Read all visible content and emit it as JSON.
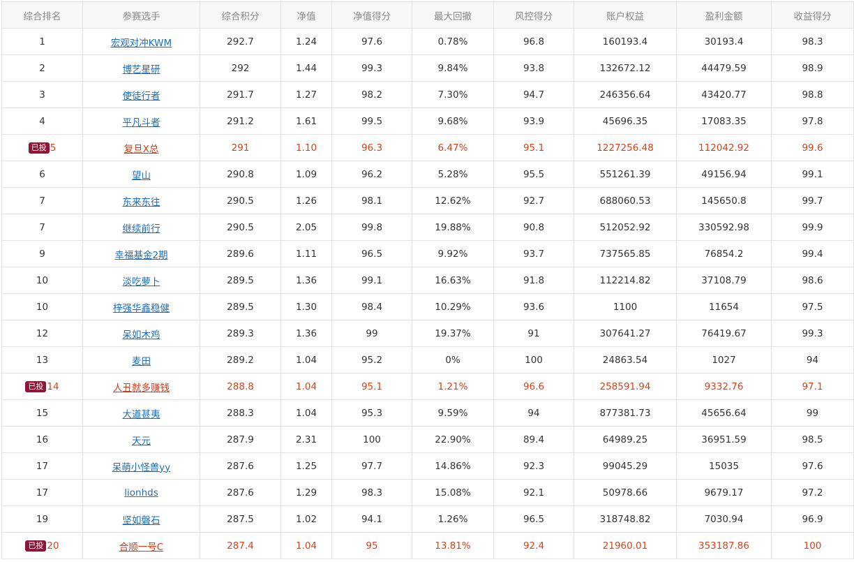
{
  "table": {
    "headers": [
      "综合排名",
      "参赛选手",
      "综合积分",
      "净值",
      "净值得分",
      "最大回撤",
      "风控得分",
      "账户权益",
      "盈利金额",
      "收益得分"
    ],
    "rows": [
      {
        "rank": "1",
        "badge": "",
        "name": "宏观对冲KWM",
        "score": "292.7",
        "nav": "1.24",
        "nav_score": "97.6",
        "max_drawdown": "0.78%",
        "risk_score": "96.8",
        "equity": "160193.4",
        "profit": "30193.4",
        "return_score": "98.3"
      },
      {
        "rank": "2",
        "badge": "",
        "name": "博艺星研",
        "score": "292",
        "nav": "1.44",
        "nav_score": "99.3",
        "max_drawdown": "9.84%",
        "risk_score": "93.8",
        "equity": "132672.12",
        "profit": "44479.59",
        "return_score": "98.9"
      },
      {
        "rank": "3",
        "badge": "",
        "name": "使徒行者",
        "score": "291.7",
        "nav": "1.27",
        "nav_score": "98.2",
        "max_drawdown": "7.30%",
        "risk_score": "94.7",
        "equity": "246356.64",
        "profit": "43420.77",
        "return_score": "98.8"
      },
      {
        "rank": "4",
        "badge": "",
        "name": "平凡斗者",
        "score": "291.2",
        "nav": "1.61",
        "nav_score": "99.5",
        "max_drawdown": "9.68%",
        "risk_score": "93.9",
        "equity": "45696.35",
        "profit": "17083.35",
        "return_score": "97.8"
      },
      {
        "rank": "5",
        "badge": "已投",
        "name": "复旦X总",
        "score": "291",
        "nav": "1.10",
        "nav_score": "96.3",
        "max_drawdown": "6.47%",
        "risk_score": "95.1",
        "equity": "1227256.48",
        "profit": "112042.92",
        "return_score": "99.6"
      },
      {
        "rank": "6",
        "badge": "",
        "name": "望山",
        "score": "290.8",
        "nav": "1.09",
        "nav_score": "96.2",
        "max_drawdown": "5.28%",
        "risk_score": "95.5",
        "equity": "551261.39",
        "profit": "49156.94",
        "return_score": "99.1"
      },
      {
        "rank": "7",
        "badge": "",
        "name": "东来东往",
        "score": "290.5",
        "nav": "1.26",
        "nav_score": "98.1",
        "max_drawdown": "12.62%",
        "risk_score": "92.7",
        "equity": "688060.53",
        "profit": "145650.8",
        "return_score": "99.7"
      },
      {
        "rank": "7",
        "badge": "",
        "name": "继续前行",
        "score": "290.5",
        "nav": "2.05",
        "nav_score": "99.8",
        "max_drawdown": "19.88%",
        "risk_score": "90.8",
        "equity": "512052.92",
        "profit": "330592.98",
        "return_score": "99.9"
      },
      {
        "rank": "9",
        "badge": "",
        "name": "幸福基金2期",
        "score": "289.6",
        "nav": "1.11",
        "nav_score": "96.5",
        "max_drawdown": "9.92%",
        "risk_score": "93.7",
        "equity": "737565.85",
        "profit": "76854.2",
        "return_score": "99.4"
      },
      {
        "rank": "10",
        "badge": "",
        "name": "淡吃萝卜",
        "score": "289.5",
        "nav": "1.36",
        "nav_score": "99.1",
        "max_drawdown": "16.63%",
        "risk_score": "91.8",
        "equity": "112214.82",
        "profit": "37108.79",
        "return_score": "98.6"
      },
      {
        "rank": "10",
        "badge": "",
        "name": "梓强华鑫稳健",
        "score": "289.5",
        "nav": "1.30",
        "nav_score": "98.4",
        "max_drawdown": "10.29%",
        "risk_score": "93.6",
        "equity": "1100",
        "profit": "11654",
        "return_score": "97.5"
      },
      {
        "rank": "12",
        "badge": "",
        "name": "呆如木鸡",
        "score": "289.3",
        "nav": "1.36",
        "nav_score": "99",
        "max_drawdown": "19.37%",
        "risk_score": "91",
        "equity": "307641.27",
        "profit": "76419.67",
        "return_score": "99.3"
      },
      {
        "rank": "13",
        "badge": "",
        "name": "麦田",
        "score": "289.2",
        "nav": "1.04",
        "nav_score": "95.2",
        "max_drawdown": "0%",
        "risk_score": "100",
        "equity": "24863.54",
        "profit": "1027",
        "return_score": "94"
      },
      {
        "rank": "14",
        "badge": "已投",
        "name": "人丑就多赚钱",
        "score": "288.8",
        "nav": "1.04",
        "nav_score": "95.1",
        "max_drawdown": "1.21%",
        "risk_score": "96.6",
        "equity": "258591.94",
        "profit": "9332.76",
        "return_score": "97.1"
      },
      {
        "rank": "15",
        "badge": "",
        "name": "大道甚夷",
        "score": "288.3",
        "nav": "1.04",
        "nav_score": "95.3",
        "max_drawdown": "9.59%",
        "risk_score": "94",
        "equity": "877381.73",
        "profit": "45656.64",
        "return_score": "99"
      },
      {
        "rank": "16",
        "badge": "",
        "name": "天元",
        "score": "287.9",
        "nav": "2.31",
        "nav_score": "100",
        "max_drawdown": "22.90%",
        "risk_score": "89.4",
        "equity": "64989.25",
        "profit": "36951.59",
        "return_score": "98.5"
      },
      {
        "rank": "17",
        "badge": "",
        "name": "呆萌小怪兽yy",
        "score": "287.6",
        "nav": "1.25",
        "nav_score": "97.7",
        "max_drawdown": "14.86%",
        "risk_score": "92.3",
        "equity": "99045.29",
        "profit": "15035",
        "return_score": "97.6"
      },
      {
        "rank": "17",
        "badge": "",
        "name": "lionhds",
        "score": "287.6",
        "nav": "1.29",
        "nav_score": "98.3",
        "max_drawdown": "15.08%",
        "risk_score": "92.1",
        "equity": "50978.66",
        "profit": "9679.17",
        "return_score": "97.2"
      },
      {
        "rank": "19",
        "badge": "",
        "name": "坚如磐石",
        "score": "287.5",
        "nav": "1.02",
        "nav_score": "94.1",
        "max_drawdown": "1.26%",
        "risk_score": "96.5",
        "equity": "318748.82",
        "profit": "7030.94",
        "return_score": "96.9"
      },
      {
        "rank": "20",
        "badge": "已投",
        "name": "合顺一号C",
        "score": "287.4",
        "nav": "1.04",
        "nav_score": "95",
        "max_drawdown": "13.81%",
        "risk_score": "92.4",
        "equity": "21960.01",
        "profit": "353187.86",
        "return_score": "100"
      }
    ]
  },
  "colors": {
    "invested_text": "#d0451b",
    "badge_bg": "#8e1536",
    "link": "#1f6fb5",
    "header_bg": "#f7f7f7",
    "border": "#e3e3e3"
  }
}
